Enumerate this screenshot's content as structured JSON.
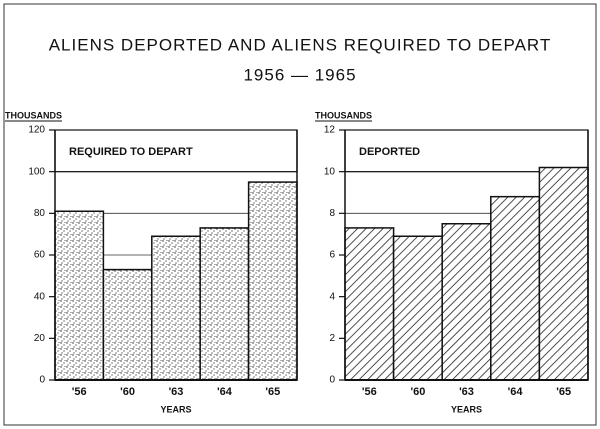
{
  "title": "ALIENS DEPORTED AND ALIENS REQUIRED TO DEPART",
  "subtitle": "1956 — 1965",
  "chart_data": [
    {
      "type": "bar",
      "title": "REQUIRED TO DEPART",
      "y_label": "THOUSANDS",
      "x_label": "YEARS",
      "categories": [
        "'56",
        "'60",
        "'63",
        "'64",
        "'65"
      ],
      "values": [
        81,
        53,
        69,
        73,
        95
      ],
      "ylim": [
        0,
        120
      ],
      "yticks": [
        0,
        20,
        40,
        60,
        80,
        100,
        120
      ],
      "color": "#111111",
      "fill_pattern": "stipple",
      "grid": true
    },
    {
      "type": "bar",
      "title": "DEPORTED",
      "y_label": "THOUSANDS",
      "x_label": "YEARS",
      "categories": [
        "'56",
        "'60",
        "'63",
        "'64",
        "'65"
      ],
      "values": [
        7.3,
        6.9,
        7.5,
        8.8,
        10.2
      ],
      "ylim": [
        0,
        12
      ],
      "yticks": [
        0,
        2,
        4,
        6,
        8,
        10,
        12
      ],
      "color": "#111111",
      "fill_pattern": "hatch",
      "grid": true
    }
  ]
}
